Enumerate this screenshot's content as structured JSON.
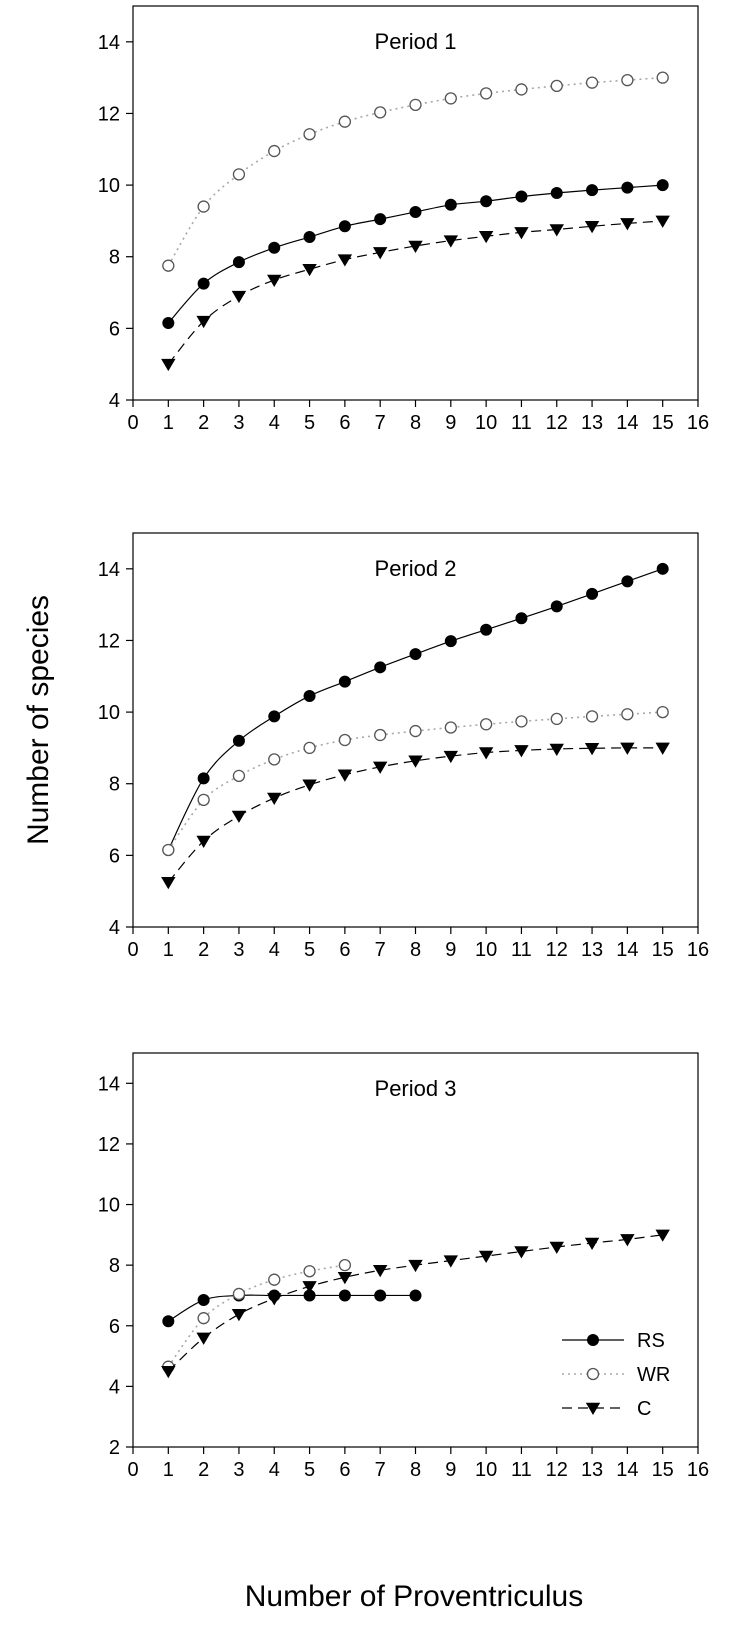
{
  "figure": {
    "ylabel": "Number of species",
    "xlabel": "Number of Proventriculus"
  },
  "legend": {
    "placement": "bottom-right of Period 3 panel",
    "items": [
      {
        "label": "RS",
        "series": "RS"
      },
      {
        "label": "WR",
        "series": "WR"
      },
      {
        "label": "C",
        "series": "C"
      }
    ]
  },
  "chart_data": [
    {
      "type": "line",
      "title": "Period 1",
      "xlim": [
        0,
        16
      ],
      "ylim": [
        4,
        15
      ],
      "xticks": [
        0,
        1,
        2,
        3,
        4,
        5,
        6,
        7,
        8,
        9,
        10,
        11,
        12,
        13,
        14,
        15,
        16
      ],
      "yticks": [
        4,
        6,
        8,
        10,
        12,
        14
      ],
      "grid": false,
      "series": [
        {
          "name": "RS",
          "marker": "filled-circle",
          "line": "solid",
          "color": "#000000",
          "x": [
            1,
            2,
            3,
            4,
            5,
            6,
            7,
            8,
            9,
            10,
            11,
            12,
            13,
            14,
            15
          ],
          "y": [
            6.15,
            7.25,
            7.85,
            8.25,
            8.55,
            8.85,
            9.05,
            9.25,
            9.45,
            9.55,
            9.68,
            9.78,
            9.86,
            9.93,
            10.0
          ]
        },
        {
          "name": "WR",
          "marker": "open-circle",
          "line": "dotted",
          "color": "#b0b0b0",
          "x": [
            1,
            2,
            3,
            4,
            5,
            6,
            7,
            8,
            9,
            10,
            11,
            12,
            13,
            14,
            15
          ],
          "y": [
            7.75,
            9.4,
            10.3,
            10.95,
            11.42,
            11.77,
            12.03,
            12.24,
            12.42,
            12.56,
            12.67,
            12.77,
            12.86,
            12.93,
            13.0
          ]
        },
        {
          "name": "C",
          "marker": "filled-triangle-down",
          "line": "dashed",
          "color": "#000000",
          "x": [
            1,
            2,
            3,
            4,
            5,
            6,
            7,
            8,
            9,
            10,
            11,
            12,
            13,
            14,
            15
          ],
          "y": [
            5.0,
            6.2,
            6.9,
            7.35,
            7.65,
            7.92,
            8.12,
            8.3,
            8.45,
            8.57,
            8.68,
            8.76,
            8.85,
            8.93,
            9.0
          ]
        }
      ]
    },
    {
      "type": "line",
      "title": "Period 2",
      "xlim": [
        0,
        16
      ],
      "ylim": [
        4,
        15
      ],
      "xticks": [
        0,
        1,
        2,
        3,
        4,
        5,
        6,
        7,
        8,
        9,
        10,
        11,
        12,
        13,
        14,
        15,
        16
      ],
      "yticks": [
        4,
        6,
        8,
        10,
        12,
        14
      ],
      "grid": false,
      "series": [
        {
          "name": "RS",
          "marker": "filled-circle",
          "line": "solid",
          "color": "#000000",
          "x": [
            1,
            2,
            3,
            4,
            5,
            6,
            7,
            8,
            9,
            10,
            11,
            12,
            13,
            14,
            15
          ],
          "y": [
            6.15,
            8.15,
            9.2,
            9.88,
            10.45,
            10.85,
            11.25,
            11.62,
            11.98,
            12.3,
            12.62,
            12.95,
            13.3,
            13.65,
            14.0
          ]
        },
        {
          "name": "WR",
          "marker": "open-circle",
          "line": "dotted",
          "color": "#b0b0b0",
          "x": [
            1,
            2,
            3,
            4,
            5,
            6,
            7,
            8,
            9,
            10,
            11,
            12,
            13,
            14,
            15
          ],
          "y": [
            6.15,
            7.55,
            8.22,
            8.68,
            9.0,
            9.22,
            9.36,
            9.47,
            9.57,
            9.66,
            9.74,
            9.81,
            9.88,
            9.94,
            10.0
          ]
        },
        {
          "name": "C",
          "marker": "filled-triangle-down",
          "line": "dashed",
          "color": "#000000",
          "x": [
            1,
            2,
            3,
            4,
            5,
            6,
            7,
            8,
            9,
            10,
            11,
            12,
            13,
            14,
            15
          ],
          "y": [
            5.25,
            6.4,
            7.1,
            7.6,
            7.97,
            8.25,
            8.47,
            8.64,
            8.77,
            8.87,
            8.93,
            8.97,
            8.99,
            9.0,
            9.0
          ]
        }
      ]
    },
    {
      "type": "line",
      "title": "Period 3",
      "xlim": [
        0,
        16
      ],
      "ylim": [
        2,
        15
      ],
      "xticks": [
        0,
        1,
        2,
        3,
        4,
        5,
        6,
        7,
        8,
        9,
        10,
        11,
        12,
        13,
        14,
        15,
        16
      ],
      "yticks": [
        2,
        4,
        6,
        8,
        10,
        12,
        14
      ],
      "grid": false,
      "series": [
        {
          "name": "RS",
          "marker": "filled-circle",
          "line": "solid",
          "color": "#000000",
          "x": [
            1,
            2,
            3,
            4,
            5,
            6,
            7,
            8
          ],
          "y": [
            6.15,
            6.85,
            7.0,
            7.0,
            7.0,
            7.0,
            7.0,
            7.0
          ]
        },
        {
          "name": "WR",
          "marker": "open-circle",
          "line": "dotted",
          "color": "#b0b0b0",
          "x": [
            1,
            2,
            3,
            4,
            5,
            6
          ],
          "y": [
            4.65,
            6.25,
            7.05,
            7.52,
            7.8,
            8.0
          ]
        },
        {
          "name": "C",
          "marker": "filled-triangle-down",
          "line": "dashed",
          "color": "#000000",
          "x": [
            1,
            2,
            3,
            4,
            5,
            6,
            7,
            8,
            9,
            10,
            11,
            12,
            13,
            14,
            15
          ],
          "y": [
            4.5,
            5.6,
            6.38,
            6.9,
            7.3,
            7.6,
            7.83,
            8.0,
            8.15,
            8.3,
            8.45,
            8.6,
            8.73,
            8.85,
            9.0
          ]
        }
      ]
    }
  ]
}
